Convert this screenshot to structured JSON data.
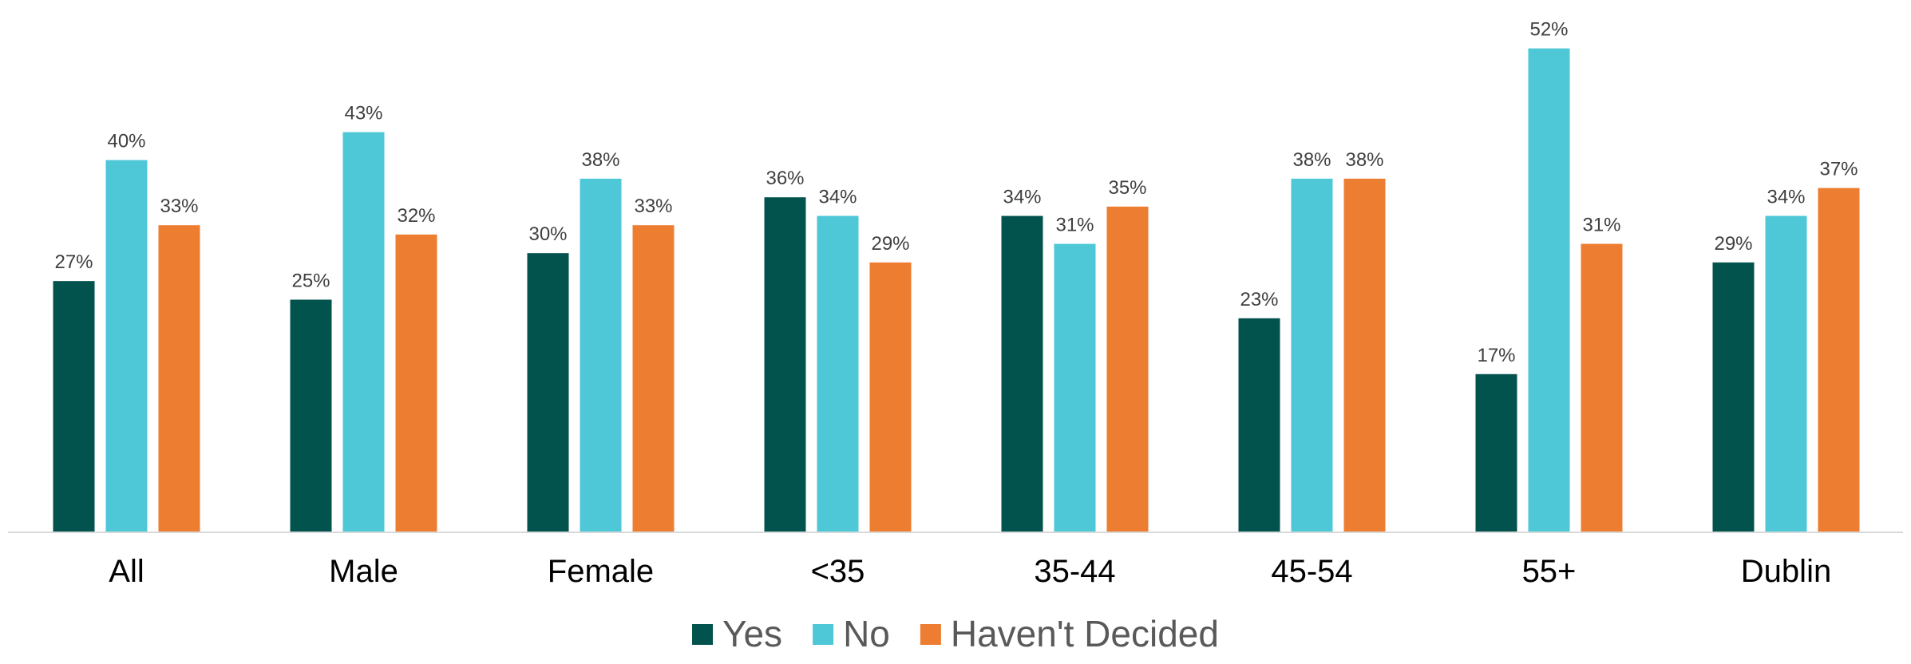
{
  "chart_data": {
    "type": "bar",
    "categories": [
      "All",
      "Male",
      "Female",
      "<35",
      "35-44",
      "45-54",
      "55+",
      "Dublin"
    ],
    "series": [
      {
        "name": "Yes",
        "color": "#02524E",
        "values": [
          27,
          25,
          30,
          36,
          34,
          23,
          17,
          29
        ]
      },
      {
        "name": "No",
        "color": "#4EC7D7",
        "values": [
          40,
          43,
          38,
          34,
          31,
          38,
          52,
          34
        ]
      },
      {
        "name": "Haven't Decided",
        "color": "#ED7D31",
        "values": [
          33,
          32,
          33,
          29,
          35,
          38,
          31,
          37
        ]
      }
    ],
    "value_suffix": "%",
    "ylim": [
      0,
      56
    ],
    "grid": false,
    "legend_position": "bottom",
    "axis_color": "#D9D9D9",
    "label_color": "#404040"
  }
}
